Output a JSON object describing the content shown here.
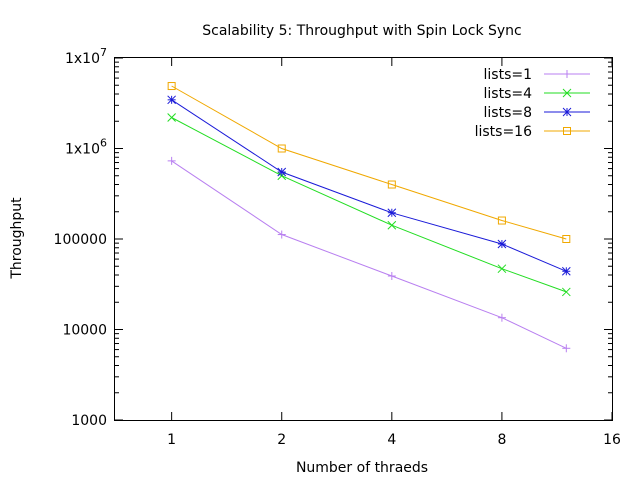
{
  "chart_data": {
    "type": "line",
    "title": "Scalability 5: Throughput with Spin Lock Sync",
    "xlabel": "Number of thraeds",
    "ylabel": "Throughput",
    "x_scale": "log2",
    "y_scale": "log10",
    "xlim": [
      0.7,
      16
    ],
    "ylim": [
      1000,
      10000000
    ],
    "x_ticks": [
      1,
      2,
      4,
      8,
      16
    ],
    "x_tick_labels": [
      "1",
      "2",
      "4",
      "8",
      "16"
    ],
    "y_ticks": [
      1000,
      10000,
      100000,
      1000000,
      10000000
    ],
    "y_tick_labels": [
      {
        "text": "1000",
        "base": "",
        "exp": ""
      },
      {
        "text": "10000",
        "base": "",
        "exp": ""
      },
      {
        "text": "100000",
        "base": "",
        "exp": ""
      },
      {
        "text": "",
        "base": "1x10",
        "exp": "6"
      },
      {
        "text": "",
        "base": "1x10",
        "exp": "7"
      }
    ],
    "x": [
      1,
      2,
      4,
      8,
      12
    ],
    "grid": false,
    "legend_position": "top-right",
    "series": [
      {
        "name": "lists=1",
        "color": "#b87ff0",
        "marker": "plus",
        "values": [
          730000,
          112000,
          39000,
          13500,
          6200
        ]
      },
      {
        "name": "lists=4",
        "color": "#22dd22",
        "marker": "cross",
        "values": [
          2200000,
          500000,
          142000,
          47000,
          26000
        ]
      },
      {
        "name": "lists=8",
        "color": "#1a1ad8",
        "marker": "star",
        "values": [
          3450000,
          550000,
          195000,
          88000,
          44000
        ]
      },
      {
        "name": "lists=16",
        "color": "#f0a800",
        "marker": "square",
        "values": [
          4900000,
          1000000,
          400000,
          160000,
          100000
        ]
      }
    ]
  }
}
